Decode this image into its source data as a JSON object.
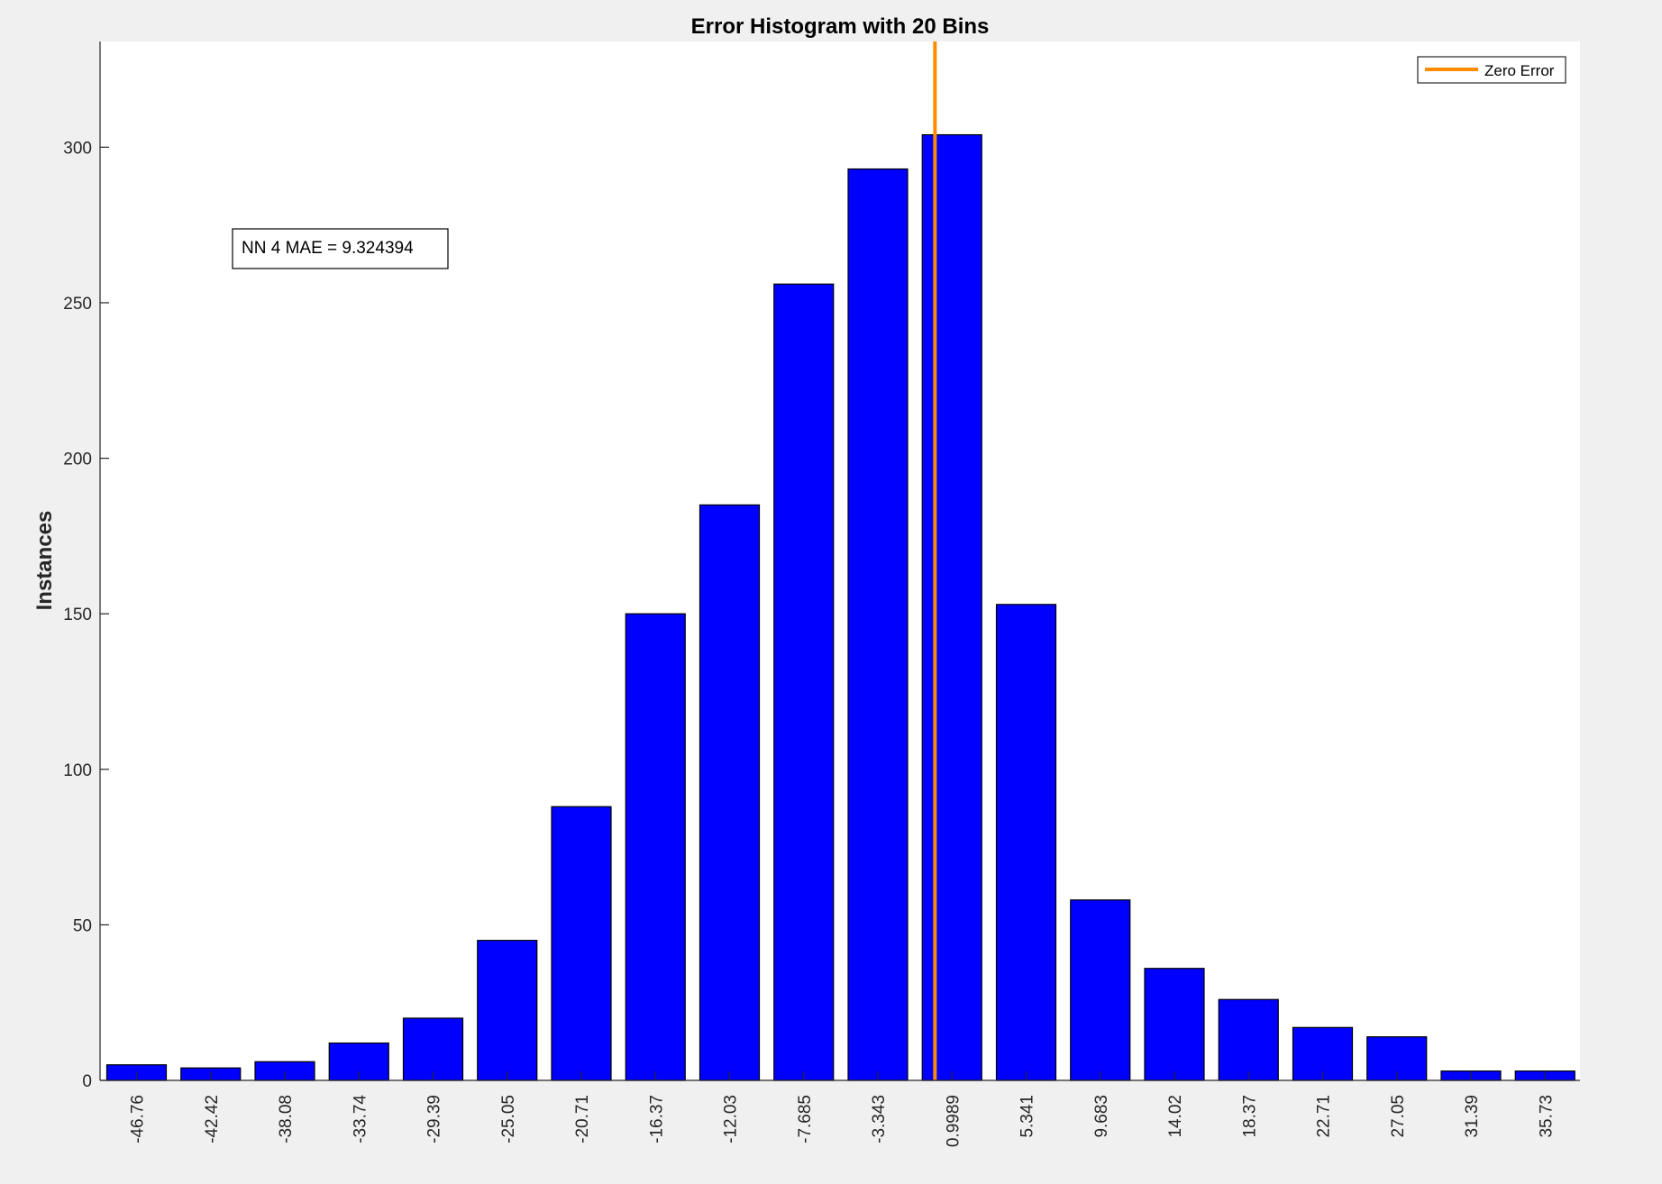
{
  "chart_data": {
    "type": "bar",
    "title": "Error Histogram with 20 Bins",
    "xlabel": "",
    "ylabel": "Instances",
    "categories": [
      "-46.76",
      "-42.42",
      "-38.08",
      "-33.74",
      "-29.39",
      "-25.05",
      "-20.71",
      "-16.37",
      "-12.03",
      "-7.685",
      "-3.343",
      "0.9989",
      "5.341",
      "9.683",
      "14.02",
      "18.37",
      "22.71",
      "27.05",
      "31.39",
      "35.73"
    ],
    "values": [
      5,
      4,
      6,
      12,
      20,
      45,
      88,
      150,
      185,
      256,
      293,
      304,
      153,
      58,
      36,
      26,
      17,
      14,
      3,
      3
    ],
    "ylim": [
      0,
      334
    ],
    "yticks": [
      0,
      50,
      100,
      150,
      200,
      250,
      300
    ],
    "grid": false,
    "bar_color": "#0000ff",
    "zero_line": {
      "x": 0,
      "color": "#ff8c00",
      "legend_label": "Zero Error"
    },
    "legend_placement": "top-right",
    "annotation": "NN 4 MAE = 9.324394"
  }
}
